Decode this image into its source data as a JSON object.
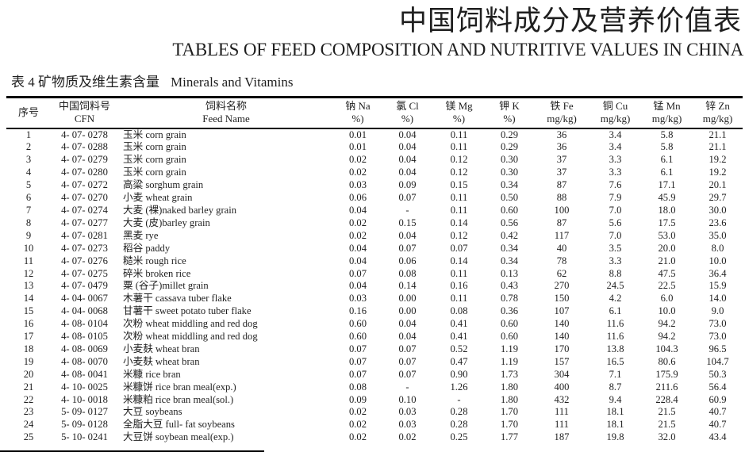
{
  "page": {
    "title_cn": "中国饲料成分及营养价值表",
    "title_en": "TABLES OF FEED COMPOSITION AND NUTRITIVE VALUES IN CHINA",
    "caption_cn": "表 4  矿物质及维生素含量",
    "caption_en": "Minerals and Vitamins"
  },
  "colors": {
    "text": "#1f1f1f",
    "rule": "#000000",
    "background": "#ffffff"
  },
  "table": {
    "columns": [
      {
        "id": "index",
        "line1": "序号",
        "line2": ""
      },
      {
        "id": "cfn",
        "line1": "中国饲料号",
        "line2": "CFN"
      },
      {
        "id": "feed-name",
        "line1": "饲料名称",
        "line2": "Feed Name"
      },
      {
        "id": "na",
        "line1": "钠 Na",
        "line2": "%)"
      },
      {
        "id": "cl",
        "line1": "氯 Cl",
        "line2": "%)"
      },
      {
        "id": "mg",
        "line1": "镁 Mg",
        "line2": "%)"
      },
      {
        "id": "k",
        "line1": "钾 K",
        "line2": "%)"
      },
      {
        "id": "fe",
        "line1": "铁 Fe",
        "line2": "mg/kg)"
      },
      {
        "id": "cu",
        "line1": "铜 Cu",
        "line2": "mg/kg)"
      },
      {
        "id": "mn",
        "line1": "锰 Mn",
        "line2": "mg/kg)"
      },
      {
        "id": "zn",
        "line1": "锌 Zn",
        "line2": "mg/kg)"
      }
    ],
    "rows": [
      [
        "1",
        "4- 07- 0278",
        "玉米 corn grain",
        "0.01",
        "0.04",
        "0.11",
        "0.29",
        "36",
        "3.4",
        "5.8",
        "21.1"
      ],
      [
        "2",
        "4- 07- 0288",
        "玉米 corn grain",
        "0.01",
        "0.04",
        "0.11",
        "0.29",
        "36",
        "3.4",
        "5.8",
        "21.1"
      ],
      [
        "3",
        "4- 07- 0279",
        "玉米 corn grain",
        "0.02",
        "0.04",
        "0.12",
        "0.30",
        "37",
        "3.3",
        "6.1",
        "19.2"
      ],
      [
        "4",
        "4- 07- 0280",
        "玉米 corn grain",
        "0.02",
        "0.04",
        "0.12",
        "0.30",
        "37",
        "3.3",
        "6.1",
        "19.2"
      ],
      [
        "5",
        "4- 07- 0272",
        "高粱 sorghum grain",
        "0.03",
        "0.09",
        "0.15",
        "0.34",
        "87",
        "7.6",
        "17.1",
        "20.1"
      ],
      [
        "6",
        "4- 07- 0270",
        "小麦 wheat grain",
        "0.06",
        "0.07",
        "0.11",
        "0.50",
        "88",
        "7.9",
        "45.9",
        "29.7"
      ],
      [
        "7",
        "4- 07- 0274",
        "大麦 (裸)naked barley  grain",
        "0.04",
        "-",
        "0.11",
        "0.60",
        "100",
        "7.0",
        "18.0",
        "30.0"
      ],
      [
        "8",
        "4- 07- 0277",
        "大麦 (皮)barley grain",
        "0.02",
        "0.15",
        "0.14",
        "0.56",
        "87",
        "5.6",
        "17.5",
        "23.6"
      ],
      [
        "9",
        "4- 07- 0281",
        "黑麦 rye",
        "0.02",
        "0.04",
        "0.12",
        "0.42",
        "117",
        "7.0",
        "53.0",
        "35.0"
      ],
      [
        "10",
        "4- 07- 0273",
        "稻谷 paddy",
        "0.04",
        "0.07",
        "0.07",
        "0.34",
        "40",
        "3.5",
        "20.0",
        "8.0"
      ],
      [
        "11",
        "4- 07- 0276",
        "糙米 rough rice",
        "0.04",
        "0.06",
        "0.14",
        "0.34",
        "78",
        "3.3",
        "21.0",
        "10.0"
      ],
      [
        "12",
        "4- 07- 0275",
        "碎米 broken rice",
        "0.07",
        "0.08",
        "0.11",
        "0.13",
        "62",
        "8.8",
        "47.5",
        "36.4"
      ],
      [
        "13",
        "4- 07- 0479",
        "粟 (谷子)millet grain",
        "0.04",
        "0.14",
        "0.16",
        "0.43",
        "270",
        "24.5",
        "22.5",
        "15.9"
      ],
      [
        "14",
        "4- 04- 0067",
        "木薯干 cassava tuber flake",
        "0.03",
        "0.00",
        "0.11",
        "0.78",
        "150",
        "4.2",
        "6.0",
        "14.0"
      ],
      [
        "15",
        "4- 04- 0068",
        "甘薯干 sweet potato tuber flake",
        "0.16",
        "0.00",
        "0.08",
        "0.36",
        "107",
        "6.1",
        "10.0",
        "9.0"
      ],
      [
        "16",
        "4- 08- 0104",
        "次粉 wheat middling and red dog",
        "0.60",
        "0.04",
        "0.41",
        "0.60",
        "140",
        "11.6",
        "94.2",
        "73.0"
      ],
      [
        "17",
        "4- 08- 0105",
        "次粉 wheat middling and red dog",
        "0.60",
        "0.04",
        "0.41",
        "0.60",
        "140",
        "11.6",
        "94.2",
        "73.0"
      ],
      [
        "18",
        "4- 08- 0069",
        "小麦麸 wheat bran",
        "0.07",
        "0.07",
        "0.52",
        "1.19",
        "170",
        "13.8",
        "104.3",
        "96.5"
      ],
      [
        "19",
        "4- 08- 0070",
        "小麦麸 wheat bran",
        "0.07",
        "0.07",
        "0.47",
        "1.19",
        "157",
        "16.5",
        "80.6",
        "104.7"
      ],
      [
        "20",
        "4- 08- 0041",
        "米糠 rice bran",
        "0.07",
        "0.07",
        "0.90",
        "1.73",
        "304",
        "7.1",
        "175.9",
        "50.3"
      ],
      [
        "21",
        "4- 10- 0025",
        "米糠饼 rice bran meal(exp.)",
        "0.08",
        "-",
        "1.26",
        "1.80",
        "400",
        "8.7",
        "211.6",
        "56.4"
      ],
      [
        "22",
        "4- 10- 0018",
        "米糠粕 rice bran meal(sol.)",
        "0.09",
        "0.10",
        "-",
        "1.80",
        "432",
        "9.4",
        "228.4",
        "60.9"
      ],
      [
        "23",
        "5- 09- 0127",
        "大豆 soybeans",
        "0.02",
        "0.03",
        "0.28",
        "1.70",
        "111",
        "18.1",
        "21.5",
        "40.7"
      ],
      [
        "24",
        "5- 09- 0128",
        "全脂大豆 full- fat soybeans",
        "0.02",
        "0.03",
        "0.28",
        "1.70",
        "111",
        "18.1",
        "21.5",
        "40.7"
      ],
      [
        "25",
        "5- 10- 0241",
        "大豆饼 soybean meal(exp.)",
        "0.02",
        "0.02",
        "0.25",
        "1.77",
        "187",
        "19.8",
        "32.0",
        "43.4"
      ]
    ]
  }
}
